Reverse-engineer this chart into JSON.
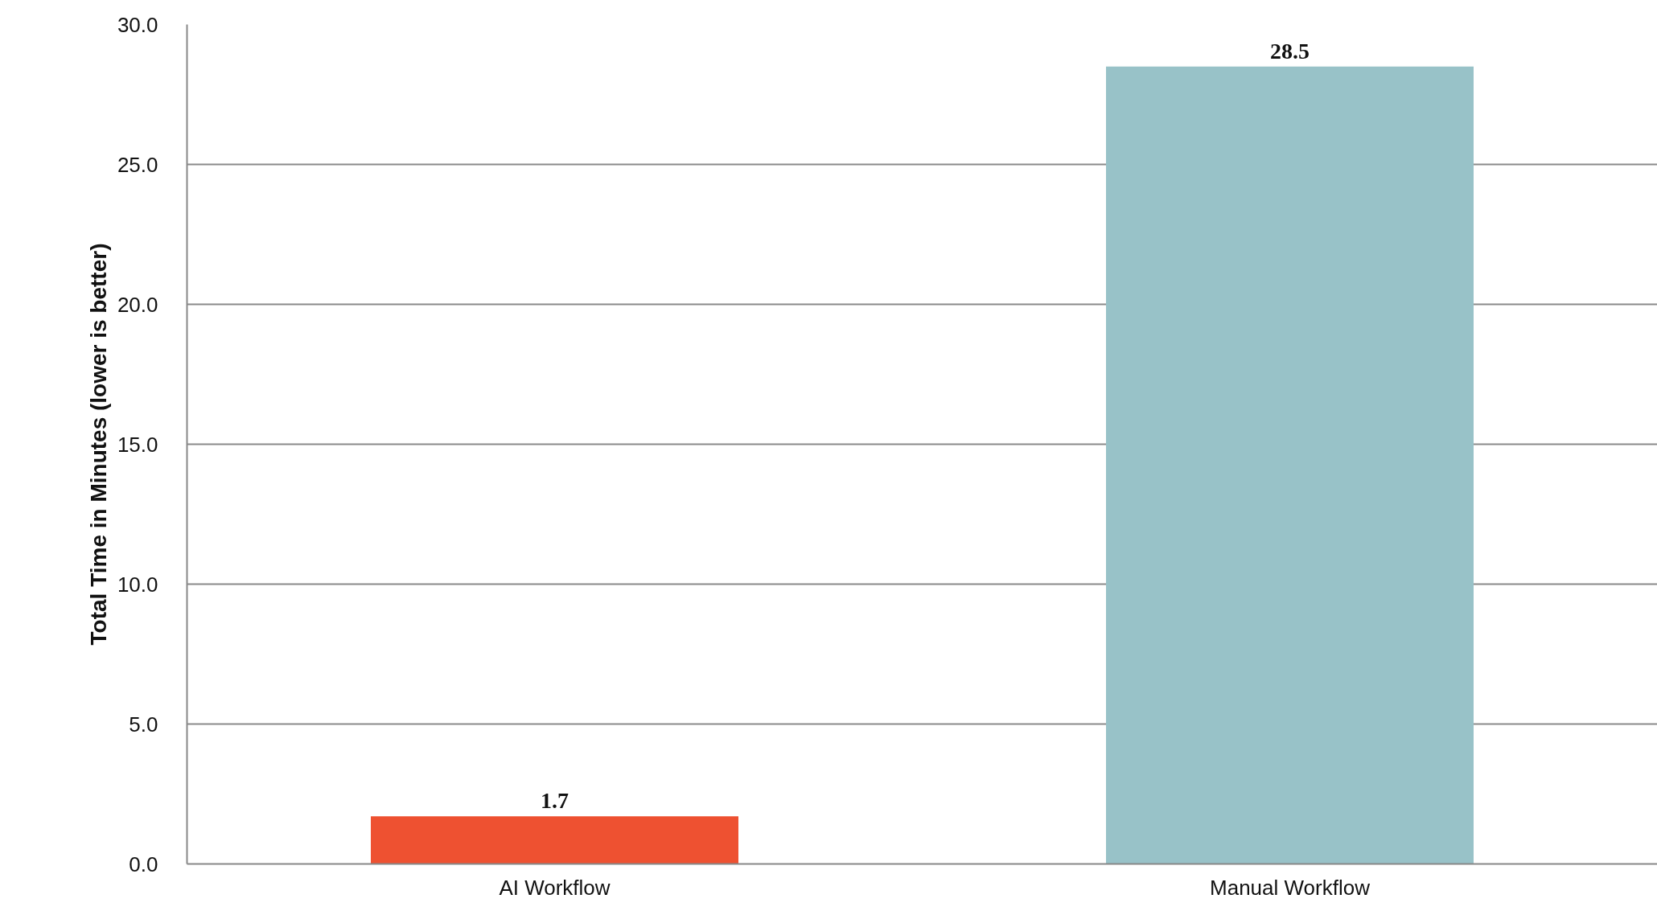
{
  "chart_data": {
    "type": "bar",
    "ylabel": "Total Time in Minutes (lower is better)",
    "categories": [
      "AI Workflow",
      "Manual Workflow"
    ],
    "values": [
      1.7,
      28.5
    ],
    "colors": [
      "#ee5131",
      "#98c2c8"
    ],
    "ylim": [
      0,
      30
    ],
    "yticks": [
      {
        "value": 0,
        "label": "0.0"
      },
      {
        "value": 5,
        "label": "5.0"
      },
      {
        "value": 10,
        "label": "10.0"
      },
      {
        "value": 15,
        "label": "15.0"
      },
      {
        "value": 20,
        "label": "20.0"
      },
      {
        "value": 25,
        "label": "25.0"
      },
      {
        "value": 30,
        "label": "30.0"
      }
    ],
    "grid": "y",
    "data_labels": true
  }
}
